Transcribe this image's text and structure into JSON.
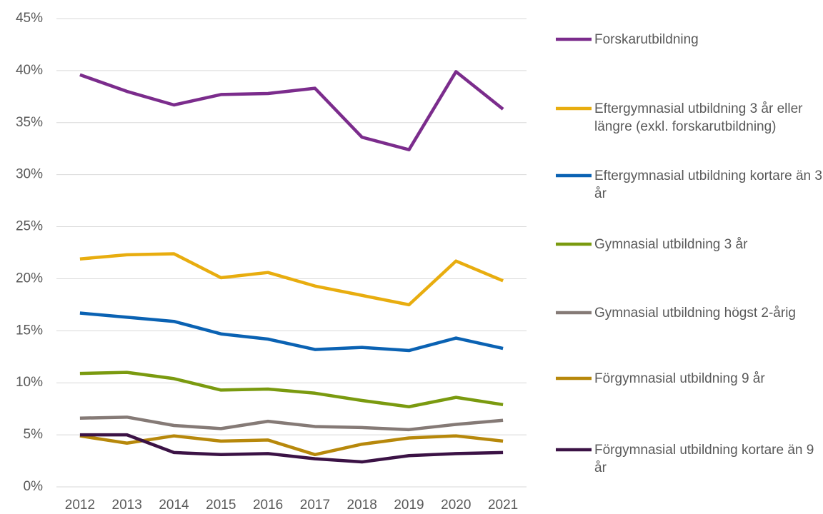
{
  "chart_data": {
    "type": "line",
    "categories": [
      "2012",
      "2013",
      "2014",
      "2015",
      "2016",
      "2017",
      "2018",
      "2019",
      "2020",
      "2021"
    ],
    "series": [
      {
        "name": "Forskarutbildning",
        "color": "#7b2c8c",
        "values": [
          39.6,
          38.0,
          36.7,
          37.7,
          37.8,
          38.3,
          33.6,
          32.4,
          39.9,
          36.3
        ]
      },
      {
        "name": "Eftergymnasial utbildning 3 år eller längre (exkl. forskarutbildning)",
        "color": "#e8ad0f",
        "values": [
          21.9,
          22.3,
          22.4,
          20.1,
          20.6,
          19.3,
          18.4,
          17.5,
          21.7,
          19.8
        ]
      },
      {
        "name": "Eftergymnasial utbildning kortare än 3 år",
        "color": "#0a62b3",
        "values": [
          16.7,
          16.3,
          15.9,
          14.7,
          14.2,
          13.2,
          13.4,
          13.1,
          14.3,
          13.3
        ]
      },
      {
        "name": "Gymnasial utbildning 3 år",
        "color": "#7a9a0f",
        "values": [
          10.9,
          11.0,
          10.4,
          9.3,
          9.4,
          9.0,
          8.3,
          7.7,
          8.6,
          7.9
        ]
      },
      {
        "name": "Gymnasial utbildning högst 2-årig",
        "color": "#857a76",
        "values": [
          6.6,
          6.7,
          5.9,
          5.6,
          6.3,
          5.8,
          5.7,
          5.5,
          6.0,
          6.4
        ]
      },
      {
        "name": "Förgymnasial utbildning 9 år",
        "color": "#b7880b",
        "values": [
          4.9,
          4.2,
          4.9,
          4.4,
          4.5,
          3.1,
          4.1,
          4.7,
          4.9,
          4.4
        ]
      },
      {
        "name": "Förgymnasial utbildning kortare än 9 år",
        "color": "#3b1245",
        "values": [
          5.0,
          5.0,
          3.3,
          3.1,
          3.2,
          2.7,
          2.4,
          3.0,
          3.2,
          3.3
        ]
      }
    ],
    "ylim": [
      0,
      45
    ],
    "yticks": [
      {
        "value": 0,
        "label": "0%"
      },
      {
        "value": 5,
        "label": "5%"
      },
      {
        "value": 10,
        "label": "10%"
      },
      {
        "value": 15,
        "label": "15%"
      },
      {
        "value": 20,
        "label": "20%"
      },
      {
        "value": 25,
        "label": "25%"
      },
      {
        "value": 30,
        "label": "30%"
      },
      {
        "value": 35,
        "label": "35%"
      },
      {
        "value": 40,
        "label": "40%"
      },
      {
        "value": 45,
        "label": "45%"
      }
    ],
    "grid": true,
    "legend": "right"
  }
}
